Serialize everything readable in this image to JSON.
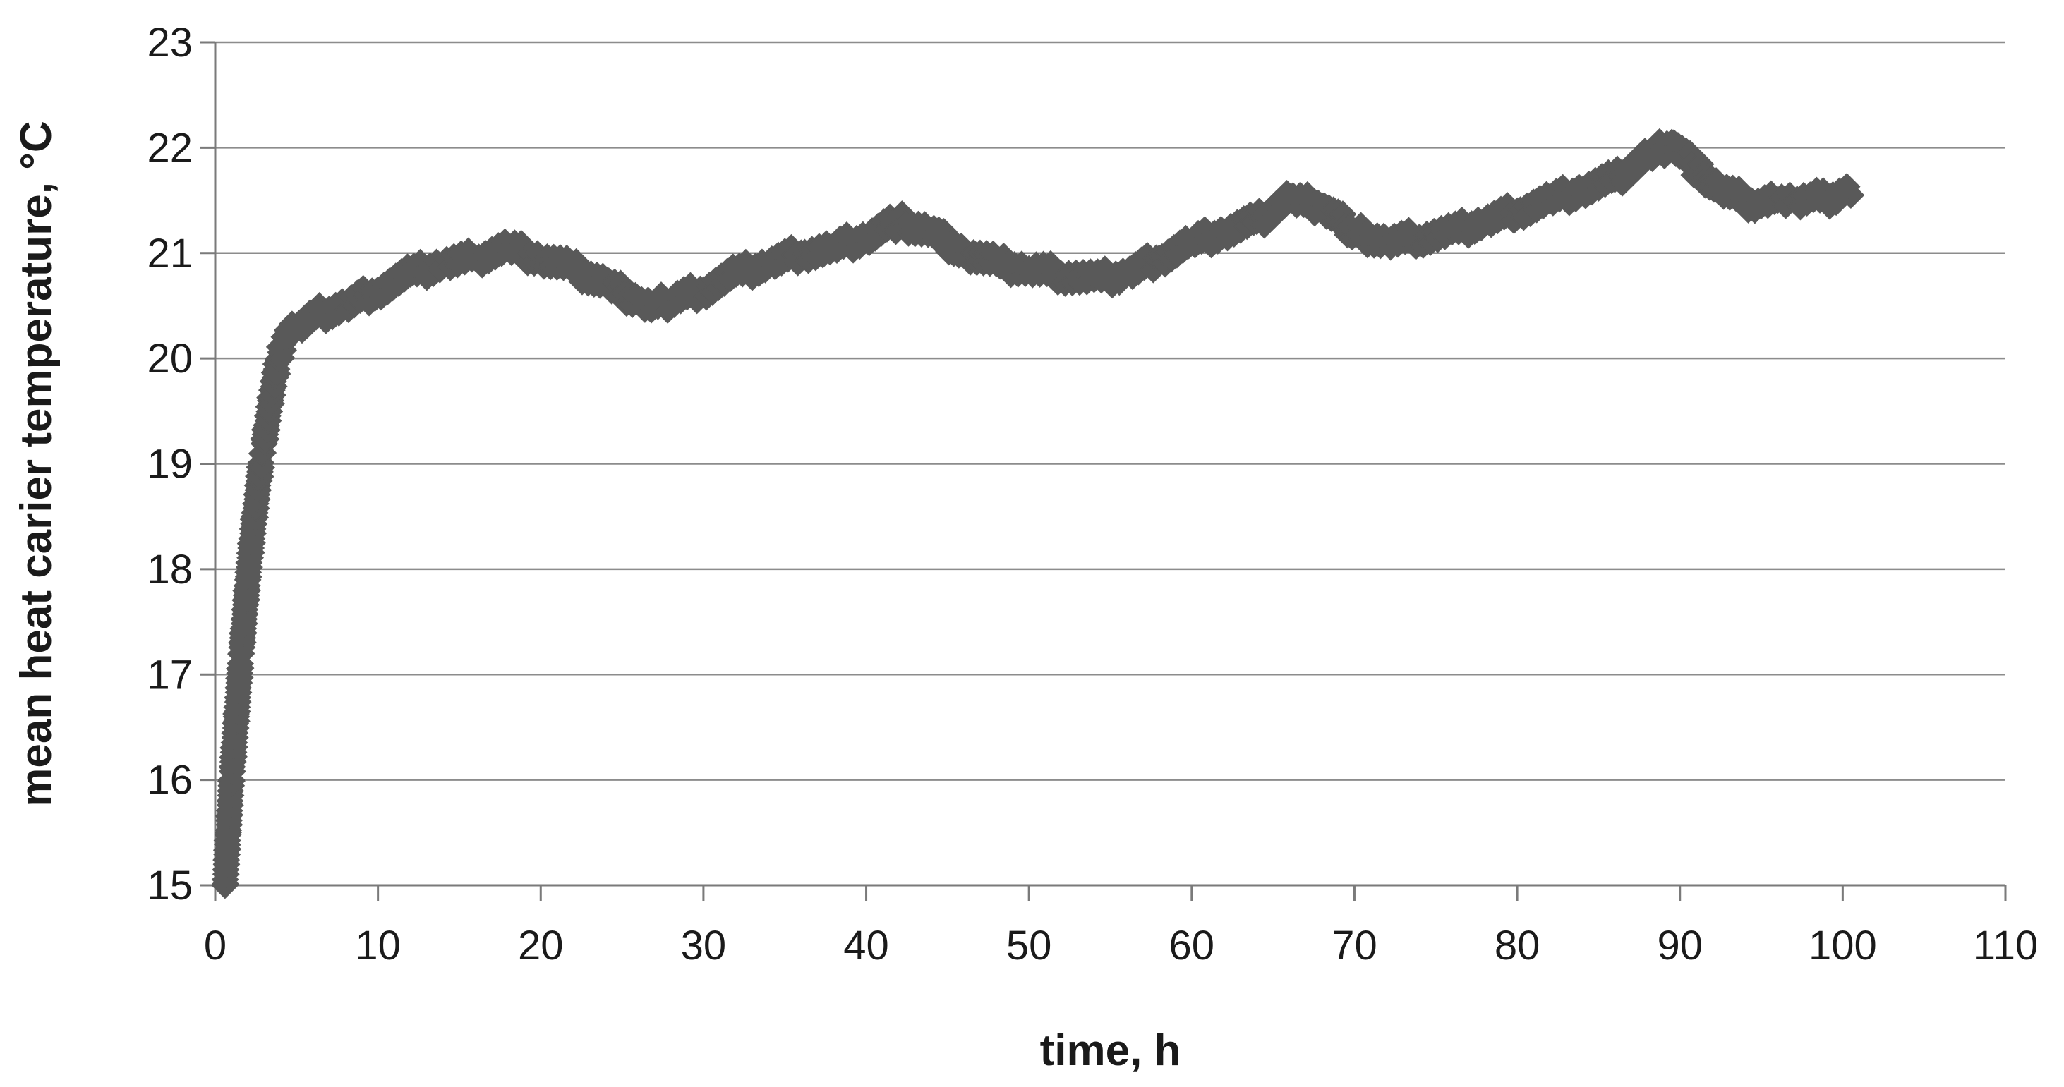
{
  "chart_data": {
    "type": "scatter",
    "title": "",
    "xlabel": "time, h",
    "ylabel": "mean heat carier temperature, °C",
    "xlim": [
      0,
      110
    ],
    "ylim": [
      15,
      23
    ],
    "xticks": [
      0,
      10,
      20,
      30,
      40,
      50,
      60,
      70,
      80,
      90,
      100,
      110
    ],
    "yticks": [
      15,
      16,
      17,
      18,
      19,
      20,
      21,
      22,
      23
    ],
    "grid": "horizontal",
    "legend": "none",
    "marker": "diamond",
    "color": "#595959",
    "series": [
      {
        "points": [
          [
            0.6,
            15.0
          ],
          [
            0.8,
            15.5
          ],
          [
            1.0,
            16.0
          ],
          [
            1.3,
            16.6
          ],
          [
            1.6,
            17.2
          ],
          [
            2.0,
            17.9
          ],
          [
            2.4,
            18.5
          ],
          [
            2.9,
            19.1
          ],
          [
            3.4,
            19.6
          ],
          [
            3.9,
            20.0
          ],
          [
            4.3,
            20.2
          ],
          [
            5.0,
            20.3
          ],
          [
            6.0,
            20.4
          ],
          [
            8.0,
            20.5
          ],
          [
            10.0,
            20.65
          ],
          [
            12.0,
            20.8
          ],
          [
            14.0,
            20.9
          ],
          [
            16.0,
            20.95
          ],
          [
            18.0,
            21.05
          ],
          [
            20.0,
            20.95
          ],
          [
            22.0,
            20.85
          ],
          [
            24.0,
            20.7
          ],
          [
            26.0,
            20.55
          ],
          [
            27.0,
            20.5
          ],
          [
            28.0,
            20.55
          ],
          [
            30.0,
            20.65
          ],
          [
            32.0,
            20.8
          ],
          [
            34.0,
            20.9
          ],
          [
            36.0,
            21.0
          ],
          [
            38.0,
            21.05
          ],
          [
            40.0,
            21.15
          ],
          [
            42.0,
            21.3
          ],
          [
            44.0,
            21.2
          ],
          [
            46.0,
            21.0
          ],
          [
            48.0,
            20.9
          ],
          [
            50.0,
            20.85
          ],
          [
            52.0,
            20.8
          ],
          [
            54.0,
            20.75
          ],
          [
            56.0,
            20.8
          ],
          [
            58.0,
            20.95
          ],
          [
            60.0,
            21.1
          ],
          [
            62.0,
            21.2
          ],
          [
            64.0,
            21.3
          ],
          [
            66.0,
            21.5
          ],
          [
            68.0,
            21.45
          ],
          [
            70.0,
            21.2
          ],
          [
            72.0,
            21.1
          ],
          [
            74.0,
            21.15
          ],
          [
            76.0,
            21.2
          ],
          [
            78.0,
            21.3
          ],
          [
            80.0,
            21.4
          ],
          [
            82.0,
            21.5
          ],
          [
            84.0,
            21.6
          ],
          [
            86.0,
            21.7
          ],
          [
            88.0,
            21.9
          ],
          [
            89.5,
            22.05
          ],
          [
            91.0,
            21.8
          ],
          [
            92.5,
            21.6
          ],
          [
            94.0,
            21.5
          ],
          [
            95.0,
            21.45
          ],
          [
            96.0,
            21.5
          ],
          [
            97.0,
            21.5
          ],
          [
            98.0,
            21.55
          ],
          [
            99.0,
            21.5
          ],
          [
            100.0,
            21.55
          ],
          [
            100.5,
            21.55
          ]
        ]
      }
    ]
  }
}
